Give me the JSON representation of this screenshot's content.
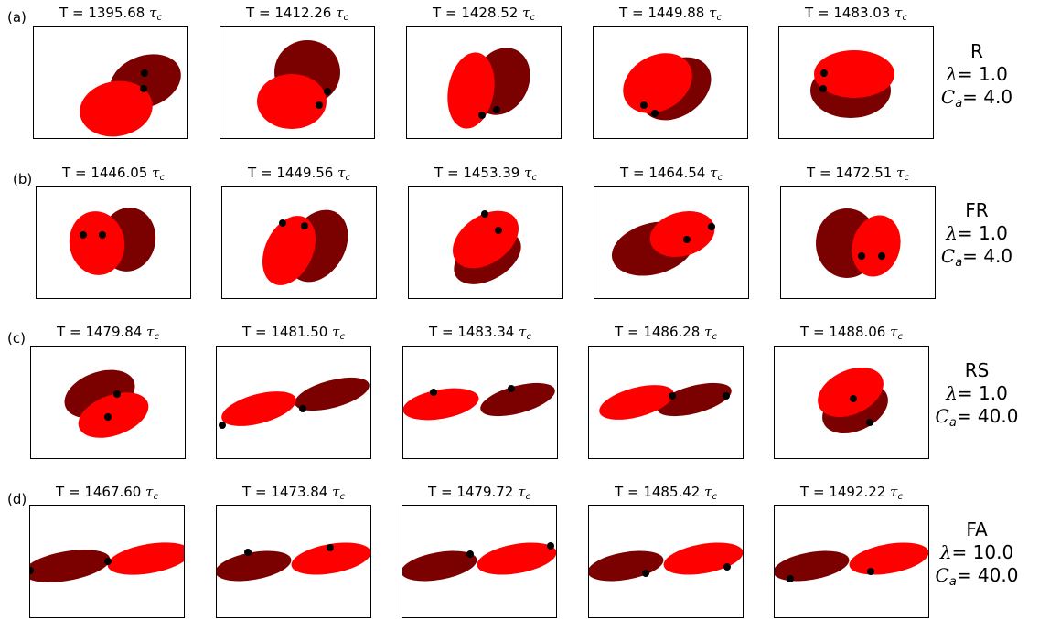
{
  "colors": {
    "cell_dark": "#7b0000",
    "cell_bright": "#ff0000",
    "marker": "#000000"
  },
  "rows": [
    {
      "label": "(a)",
      "mode": "R",
      "lambda_label": "λ",
      "lambda_value": "= 1.0",
      "ca_label": "C",
      "ca_sub": "a",
      "ca_value": "= 4.0",
      "frames": [
        {
          "t_label": "T = 1395.68 ",
          "tau": "τ",
          "tau_sub": "c"
        },
        {
          "t_label": "T = 1412.26 ",
          "tau": "τ",
          "tau_sub": "c"
        },
        {
          "t_label": "T = 1428.52 ",
          "tau": "τ",
          "tau_sub": "c"
        },
        {
          "t_label": "T = 1449.88 ",
          "tau": "τ",
          "tau_sub": "c"
        },
        {
          "t_label": "T = 1483.03 ",
          "tau": "τ",
          "tau_sub": "c"
        }
      ]
    },
    {
      "label": "(b)",
      "mode": "FR",
      "lambda_label": "λ",
      "lambda_value": "= 1.0",
      "ca_label": "C",
      "ca_sub": "a",
      "ca_value": "= 4.0",
      "frames": [
        {
          "t_label": "T = 1446.05 ",
          "tau": "τ",
          "tau_sub": "c"
        },
        {
          "t_label": "T = 1449.56 ",
          "tau": "τ",
          "tau_sub": "c"
        },
        {
          "t_label": "T = 1453.39 ",
          "tau": "τ",
          "tau_sub": "c"
        },
        {
          "t_label": "T = 1464.54 ",
          "tau": "τ",
          "tau_sub": "c"
        },
        {
          "t_label": "T = 1472.51 ",
          "tau": "τ",
          "tau_sub": "c"
        }
      ]
    },
    {
      "label": "(c)",
      "mode": "RS",
      "lambda_label": "λ",
      "lambda_value": "= 1.0",
      "ca_label": "C",
      "ca_sub": "a",
      "ca_value": "= 40.0",
      "frames": [
        {
          "t_label": "T = 1479.84 ",
          "tau": "τ",
          "tau_sub": "c"
        },
        {
          "t_label": "T = 1481.50 ",
          "tau": "τ",
          "tau_sub": "c"
        },
        {
          "t_label": "T = 1483.34 ",
          "tau": "τ",
          "tau_sub": "c"
        },
        {
          "t_label": "T = 1486.28 ",
          "tau": "τ",
          "tau_sub": "c"
        },
        {
          "t_label": "T = 1488.06 ",
          "tau": "τ",
          "tau_sub": "c"
        }
      ]
    },
    {
      "label": "(d)",
      "mode": "FA",
      "lambda_label": "λ",
      "lambda_value": "= 10.0",
      "ca_label": "C",
      "ca_sub": "a",
      "ca_value": "= 40.0",
      "frames": [
        {
          "t_label": "T = 1467.60 ",
          "tau": "τ",
          "tau_sub": "c"
        },
        {
          "t_label": "T = 1473.84 ",
          "tau": "τ",
          "tau_sub": "c"
        },
        {
          "t_label": "T = 1479.72 ",
          "tau": "τ",
          "tau_sub": "c"
        },
        {
          "t_label": "T = 1485.42 ",
          "tau": "τ",
          "tau_sub": "c"
        },
        {
          "t_label": "T = 1492.22 ",
          "tau": "τ",
          "tau_sub": "c"
        }
      ]
    }
  ]
}
